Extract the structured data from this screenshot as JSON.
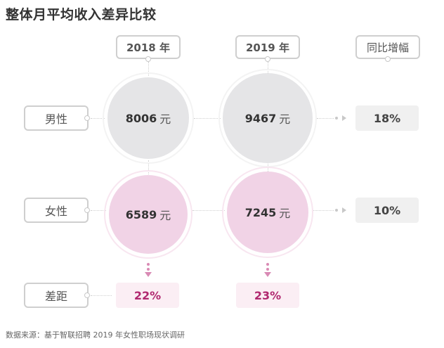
{
  "title": "整体月平均收入差异比较",
  "columns": {
    "y2018": "2018 年",
    "y2019": "2019 年",
    "yoy": "同比增幅"
  },
  "rows": {
    "male": {
      "label": "男性",
      "v2018": "8006",
      "v2019": "9467",
      "yoy": "18%"
    },
    "female": {
      "label": "女性",
      "v2018": "6589",
      "v2019": "7245",
      "yoy": "10%"
    },
    "gap": {
      "label": "差距",
      "v2018": "22%",
      "v2019": "23%"
    }
  },
  "unit": "元",
  "source": "数据来源：基于智联招聘 2019 年女性职场现状调研",
  "colors": {
    "male_circle": "#e5e5e7",
    "female_circle": "#f1d3e6",
    "gap_text": "#b0286f",
    "gap_bg": "#fbeef4"
  }
}
